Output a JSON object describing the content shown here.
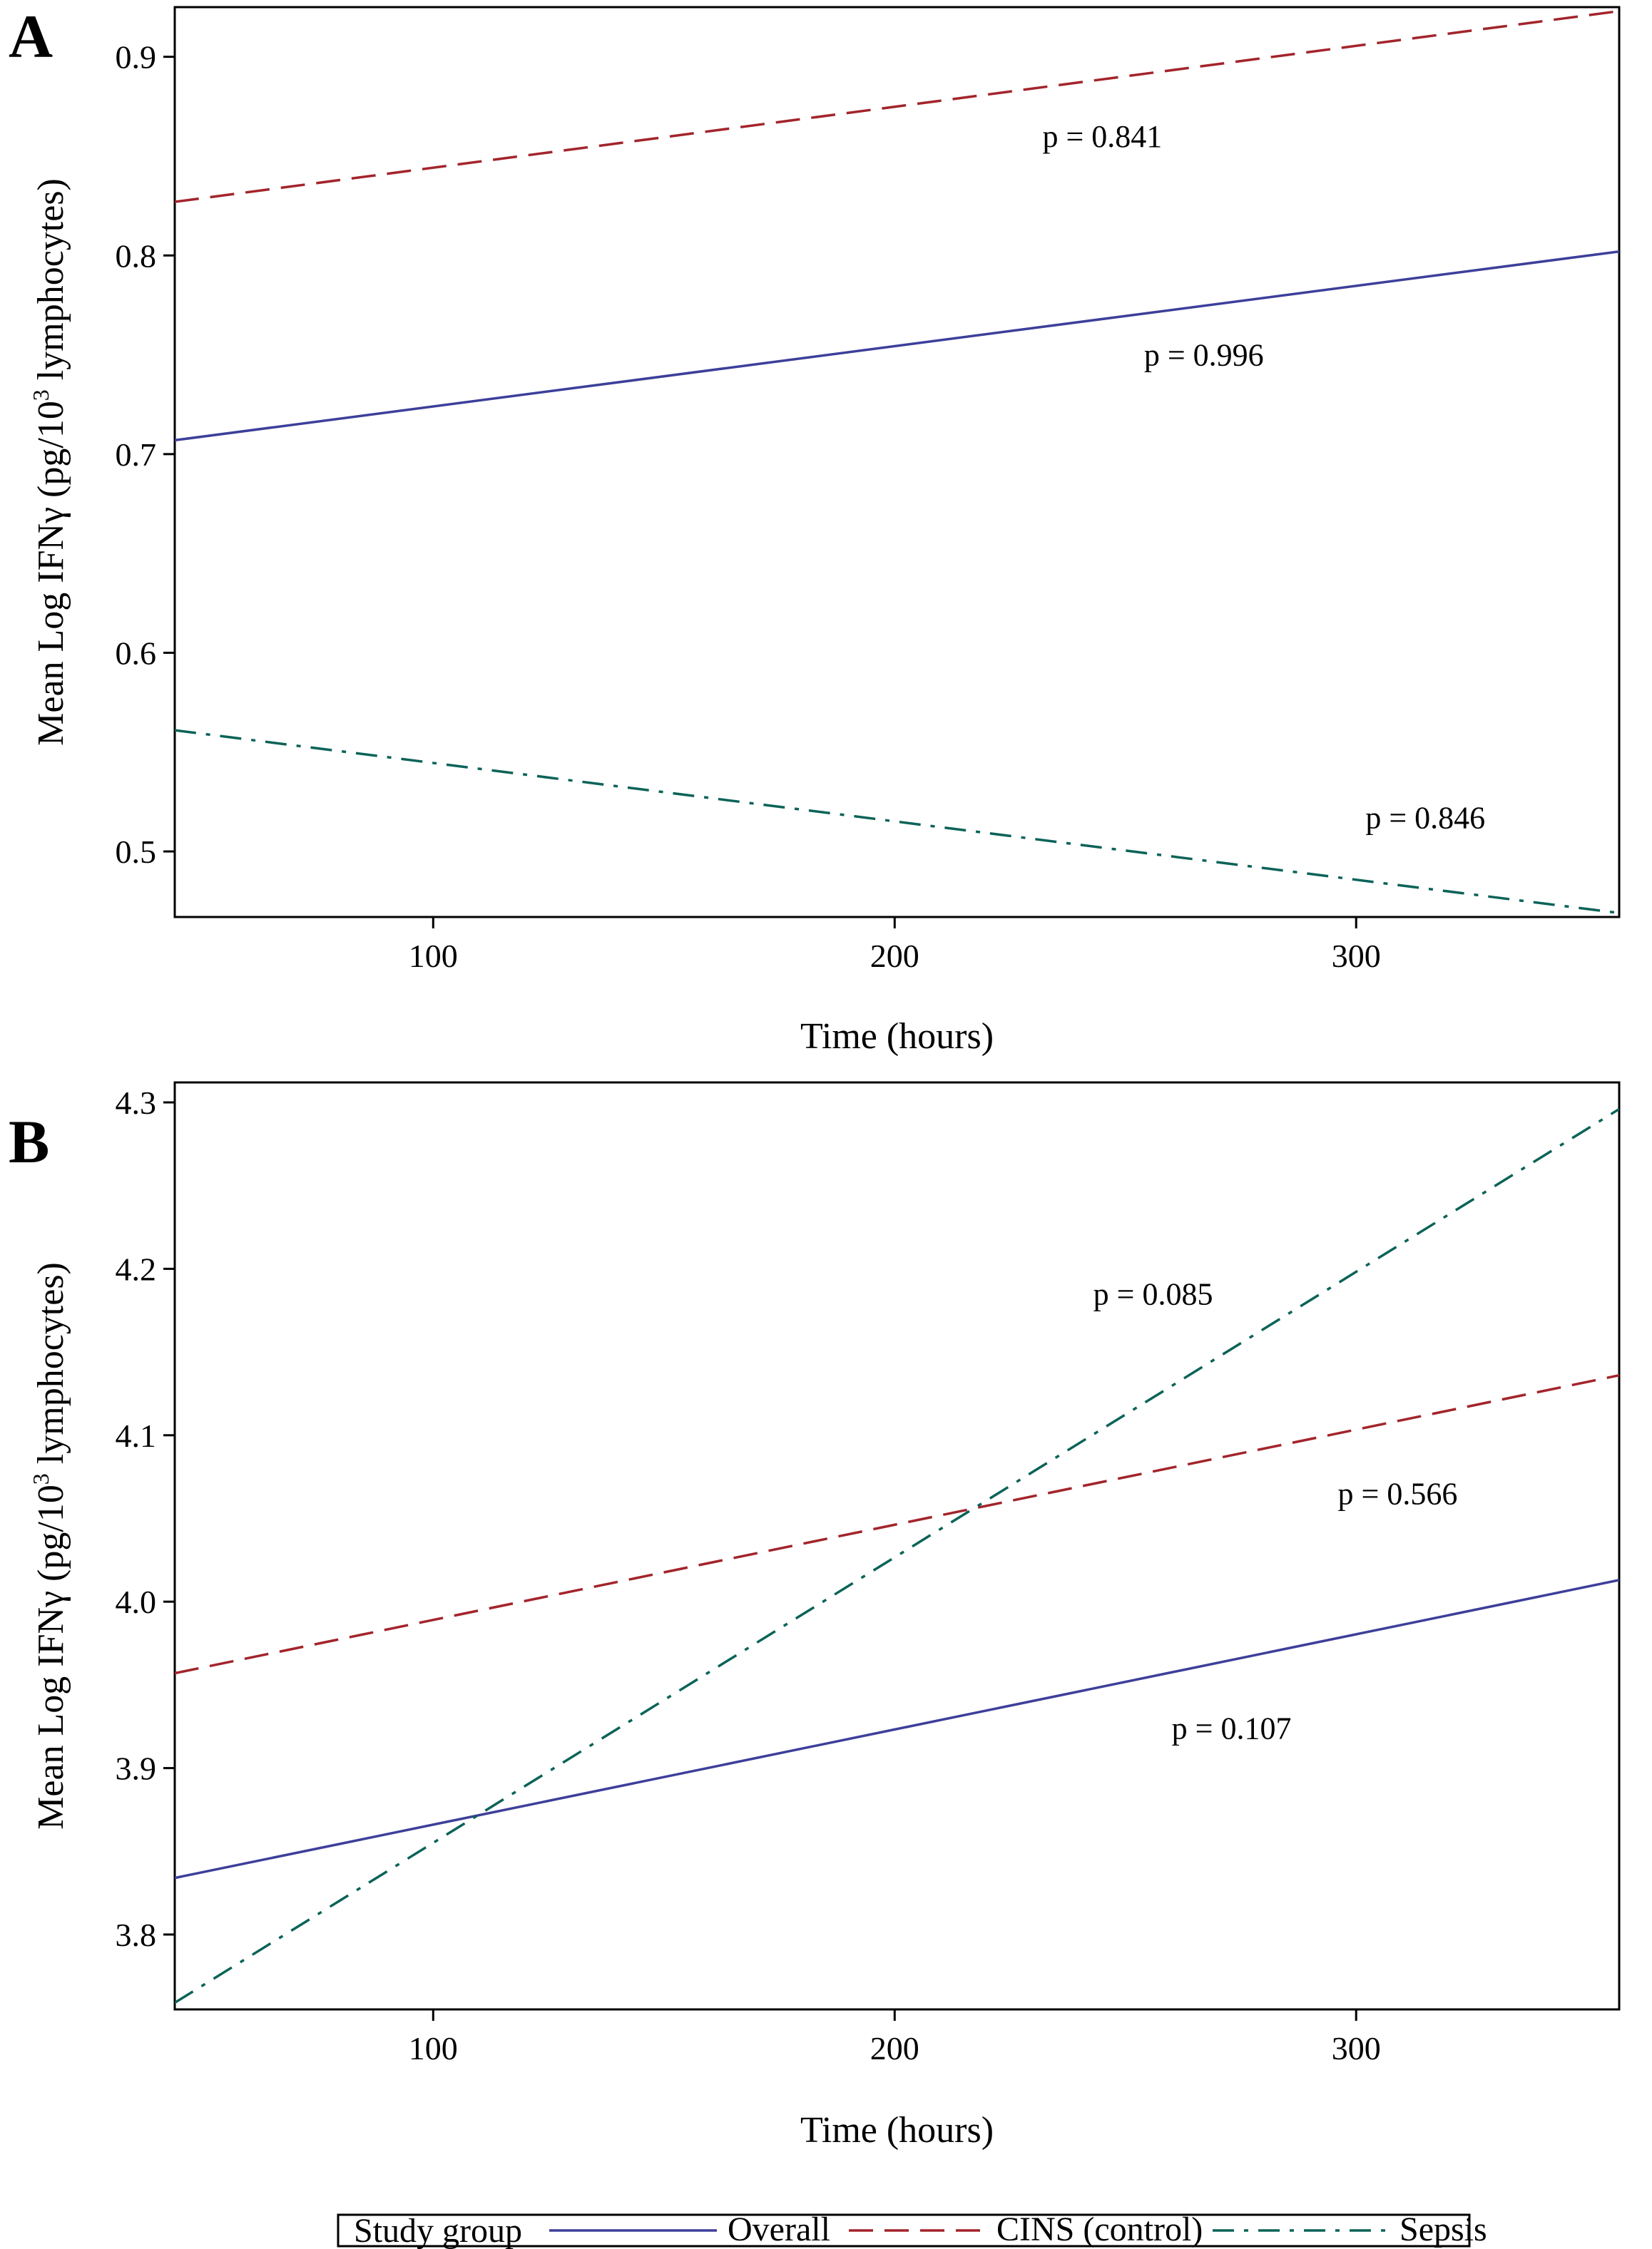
{
  "chart_data": [
    {
      "type": "line",
      "panel": "A",
      "title": "",
      "xlabel": "Time (hours)",
      "ylabel_prefix": "Mean Log IFNγ (pg/10",
      "ylabel_sup": "3",
      "ylabel_suffix": " lymphocytes)",
      "xlim": [
        44,
        357
      ],
      "ylim": [
        0.467,
        0.925
      ],
      "xticks": [
        100,
        200,
        300
      ],
      "yticks": [
        0.5,
        0.6,
        0.7,
        0.8,
        0.9
      ],
      "grid": false,
      "series": [
        {
          "name": "Overall",
          "color": "#3d3f9a",
          "dash": "solid",
          "x": [
            44,
            357
          ],
          "y": [
            0.707,
            0.802
          ]
        },
        {
          "name": "CINS (control)",
          "color": "#a3242b",
          "dash": "dashed",
          "x": [
            44,
            357
          ],
          "y": [
            0.827,
            0.923
          ]
        },
        {
          "name": "Sepsis",
          "color": "#0b6358",
          "dash": "dashdot",
          "x": [
            44,
            357
          ],
          "y": [
            0.561,
            0.469
          ]
        }
      ],
      "annotations": [
        {
          "text": "p = 0.841",
          "series": "CINS (control)",
          "x": 245,
          "y": 0.86
        },
        {
          "text": "p = 0.996",
          "series": "Overall",
          "x": 267,
          "y": 0.75
        },
        {
          "text": "p = 0.846",
          "series": "Sepsis",
          "x": 315,
          "y": 0.517
        }
      ]
    },
    {
      "type": "line",
      "panel": "B",
      "title": "",
      "xlabel": "Time (hours)",
      "ylabel_prefix": "Mean Log IFNγ (pg/10",
      "ylabel_sup": "3",
      "ylabel_suffix": " lymphocytes)",
      "xlim": [
        44,
        357
      ],
      "ylim": [
        3.755,
        4.312
      ],
      "xticks": [
        100,
        200,
        300
      ],
      "yticks": [
        3.8,
        3.9,
        4.0,
        4.1,
        4.2,
        4.3
      ],
      "grid": false,
      "series": [
        {
          "name": "Overall",
          "color": "#3d3f9a",
          "dash": "solid",
          "x": [
            44,
            357
          ],
          "y": [
            3.834,
            4.013
          ]
        },
        {
          "name": "CINS (control)",
          "color": "#a3242b",
          "dash": "dashed",
          "x": [
            44,
            357
          ],
          "y": [
            3.957,
            4.136
          ]
        },
        {
          "name": "Sepsis",
          "color": "#0b6358",
          "dash": "dashdot",
          "x": [
            44,
            357
          ],
          "y": [
            3.759,
            4.296
          ]
        }
      ],
      "annotations": [
        {
          "text": "p = 0.085",
          "series": "Sepsis",
          "x": 256,
          "y": 4.185
        },
        {
          "text": "p = 0.566",
          "series": "CINS (control)",
          "x": 309,
          "y": 4.065
        },
        {
          "text": "p = 0.107",
          "series": "Overall",
          "x": 273,
          "y": 3.924
        }
      ]
    }
  ],
  "legend": {
    "title": "Study group",
    "placement": "bottom",
    "entries": [
      {
        "name": "Overall",
        "color": "#3d3f9a",
        "dash": "solid"
      },
      {
        "name": "CINS (control)",
        "color": "#a3242b",
        "dash": "dashed"
      },
      {
        "name": "Sepsis",
        "color": "#0b6358",
        "dash": "dashdot"
      }
    ]
  }
}
